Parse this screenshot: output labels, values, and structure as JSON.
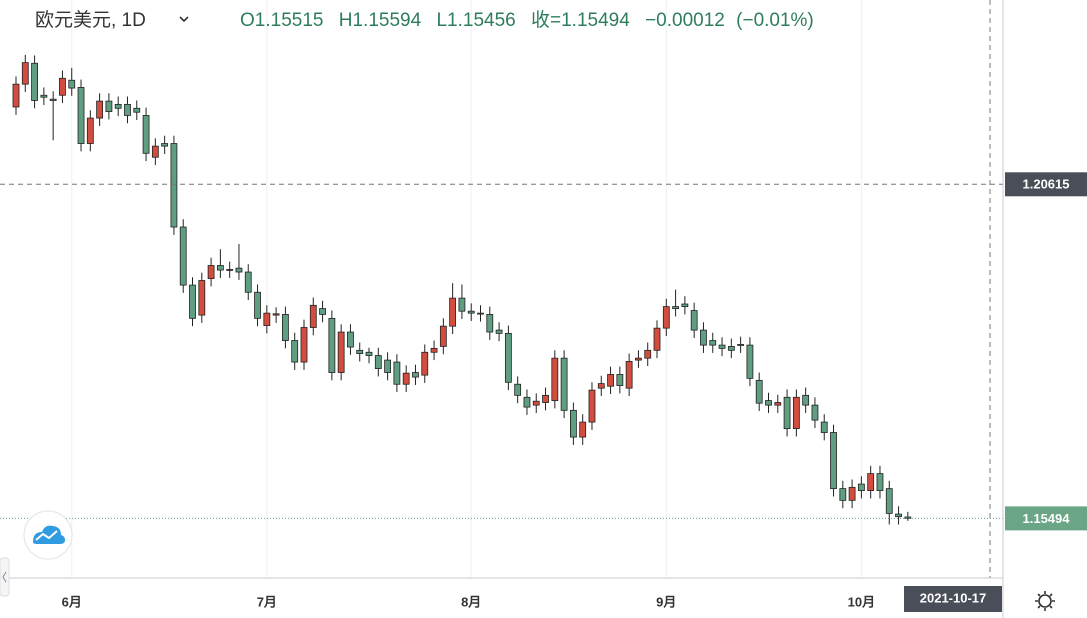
{
  "chart_data": {
    "type": "candlestick",
    "title": "欧元美元, 1D",
    "ohlc_labels": [
      "O",
      "H",
      "L",
      "收="
    ],
    "change": {
      "value": -0.00012,
      "label": "−0.00012"
    },
    "change_pct": {
      "value": -0.01,
      "label": "(−0.01%)"
    },
    "crosshair": {
      "price": 1.20615,
      "date": "2021-10-17"
    },
    "up_color": "#d24d3e",
    "down_color": "#5f9e80",
    "wick_color": "#222222",
    "last_price_color": "#6aa586",
    "crosshair_label_color": "#4a4e59",
    "ylim": [
      1.1458,
      1.2344
    ],
    "categories": [
      null,
      null,
      null,
      null,
      null,
      null,
      "6月",
      null,
      null,
      null,
      null,
      null,
      null,
      null,
      null,
      null,
      null,
      null,
      null,
      null,
      null,
      null,
      null,
      null,
      null,
      null,
      null,
      "7月",
      null,
      null,
      null,
      null,
      null,
      null,
      null,
      null,
      null,
      null,
      null,
      null,
      null,
      null,
      null,
      null,
      null,
      null,
      null,
      null,
      null,
      "8月",
      null,
      null,
      null,
      null,
      null,
      null,
      null,
      null,
      null,
      null,
      null,
      null,
      null,
      null,
      null,
      null,
      null,
      null,
      null,
      null,
      "9月",
      null,
      null,
      null,
      null,
      null,
      null,
      null,
      null,
      null,
      null,
      null,
      null,
      null,
      null,
      null,
      null,
      null,
      null,
      null,
      null,
      "10月",
      null,
      null,
      null,
      null,
      null
    ],
    "open": [
      1.218,
      1.2215,
      1.2247,
      1.2198,
      1.2192,
      1.2198,
      1.2221,
      1.221,
      1.2124,
      1.2163,
      1.2189,
      1.2184,
      1.2184,
      1.2178,
      1.2167,
      1.2103,
      1.2124,
      1.2124,
      1.1996,
      1.1907,
      1.1861,
      1.1917,
      1.1937,
      1.193,
      1.1933,
      1.1927,
      1.1896,
      1.1845,
      1.1861,
      1.1862,
      1.1822,
      1.1789,
      1.1842,
      1.1871,
      1.1856,
      1.1773,
      1.1835,
      1.1807,
      1.1804,
      1.1799,
      1.1792,
      1.1789,
      1.1755,
      1.1773,
      1.1769,
      1.1804,
      1.1813,
      1.1844,
      1.1887,
      1.1867,
      1.1864,
      1.1862,
      1.1838,
      1.1833,
      1.1755,
      1.1735,
      1.1723,
      1.1727,
      1.173,
      1.1795,
      1.1715,
      1.1674,
      1.1697,
      1.1749,
      1.1752,
      1.177,
      1.1749,
      1.1792,
      1.1795,
      1.1807,
      1.1841,
      1.1874,
      1.1878,
      1.1868,
      1.1838,
      1.1822,
      1.1815,
      1.1813,
      1.1816,
      1.1815,
      1.1761,
      1.173,
      1.1723,
      1.1735,
      1.1687,
      1.1738,
      1.1723,
      1.1697,
      1.1681,
      1.1595,
      1.1577,
      1.1602,
      1.1592,
      1.1618,
      1.1595,
      1.1556,
      1.15515
    ],
    "high": [
      1.2227,
      1.226,
      1.2259,
      1.221,
      1.2204,
      1.2236,
      1.224,
      1.2222,
      1.2175,
      1.2201,
      1.2201,
      1.2196,
      1.2196,
      1.219,
      1.2179,
      1.2132,
      1.2136,
      1.2136,
      1.2008,
      1.1919,
      1.1926,
      1.1949,
      1.1962,
      1.1943,
      1.197,
      1.1939,
      1.1908,
      1.1876,
      1.1873,
      1.1874,
      1.1834,
      1.1854,
      1.1888,
      1.1883,
      1.1868,
      1.1847,
      1.1847,
      1.1819,
      1.1811,
      1.1811,
      1.1804,
      1.1801,
      1.1784,
      1.1785,
      1.1816,
      1.1822,
      1.1856,
      1.191,
      1.1908,
      1.1879,
      1.1876,
      1.1874,
      1.185,
      1.1845,
      1.1767,
      1.1747,
      1.1741,
      1.175,
      1.1807,
      1.1807,
      1.1727,
      1.1709,
      1.1758,
      1.1768,
      1.1782,
      1.1782,
      1.1802,
      1.1807,
      1.1819,
      1.1853,
      1.1886,
      1.19,
      1.189,
      1.188,
      1.185,
      1.1834,
      1.1827,
      1.1825,
      1.1828,
      1.1827,
      1.1773,
      1.1742,
      1.1739,
      1.1747,
      1.1747,
      1.175,
      1.1735,
      1.1709,
      1.1693,
      1.1607,
      1.1609,
      1.1614,
      1.163,
      1.163,
      1.1607,
      1.1568,
      1.15594
    ],
    "low": [
      1.2168,
      1.2203,
      1.2178,
      1.2183,
      1.2129,
      1.2186,
      1.2197,
      1.2112,
      1.2112,
      1.2151,
      1.2161,
      1.2166,
      1.2155,
      1.216,
      1.2097,
      1.2091,
      1.2108,
      1.1984,
      1.1895,
      1.1844,
      1.1849,
      1.1905,
      1.1918,
      1.1918,
      1.1915,
      1.1884,
      1.1844,
      1.1833,
      1.1849,
      1.181,
      1.1777,
      1.1777,
      1.183,
      1.185,
      1.1761,
      1.1761,
      1.18,
      1.179,
      1.1787,
      1.1767,
      1.1761,
      1.1743,
      1.1743,
      1.1754,
      1.1757,
      1.1792,
      1.1801,
      1.1832,
      1.1855,
      1.1852,
      1.1851,
      1.1823,
      1.1821,
      1.1746,
      1.1726,
      1.1708,
      1.1711,
      1.1715,
      1.1718,
      1.1703,
      1.1662,
      1.1662,
      1.1685,
      1.1737,
      1.174,
      1.1741,
      1.1737,
      1.178,
      1.1783,
      1.1795,
      1.1829,
      1.1859,
      1.1862,
      1.1826,
      1.1803,
      1.1803,
      1.1798,
      1.1795,
      1.1803,
      1.1752,
      1.1714,
      1.1711,
      1.1711,
      1.1675,
      1.1675,
      1.1711,
      1.1688,
      1.1669,
      1.1583,
      1.1565,
      1.1565,
      1.158,
      1.158,
      1.158,
      1.154,
      1.154,
      1.15456
    ],
    "close": [
      1.2215,
      1.2248,
      1.219,
      1.2195,
      1.219,
      1.2224,
      1.2209,
      1.2124,
      1.2163,
      1.2189,
      1.2173,
      1.2178,
      1.2167,
      1.2172,
      1.2109,
      1.212,
      1.212,
      1.1996,
      1.1907,
      1.1856,
      1.1914,
      1.1937,
      1.193,
      1.1931,
      1.1927,
      1.1896,
      1.1856,
      1.1864,
      1.1863,
      1.1822,
      1.1789,
      1.1842,
      1.1876,
      1.1862,
      1.1773,
      1.1835,
      1.1812,
      1.1802,
      1.1799,
      1.1779,
      1.1773,
      1.1755,
      1.1772,
      1.1766,
      1.1804,
      1.181,
      1.1844,
      1.1887,
      1.1867,
      1.1864,
      1.1863,
      1.1835,
      1.1833,
      1.1758,
      1.1738,
      1.172,
      1.1729,
      1.1738,
      1.1795,
      1.1715,
      1.1674,
      1.1697,
      1.1746,
      1.1756,
      1.177,
      1.1753,
      1.179,
      1.1795,
      1.1807,
      1.1841,
      1.1874,
      1.1871,
      1.1874,
      1.1838,
      1.1815,
      1.1815,
      1.181,
      1.1807,
      1.1815,
      1.1764,
      1.1726,
      1.1723,
      1.1727,
      1.1687,
      1.1735,
      1.1723,
      1.17,
      1.1681,
      1.1595,
      1.1577,
      1.1597,
      1.1592,
      1.1618,
      1.1592,
      1.1557,
      1.1552,
      1.15494
    ]
  }
}
